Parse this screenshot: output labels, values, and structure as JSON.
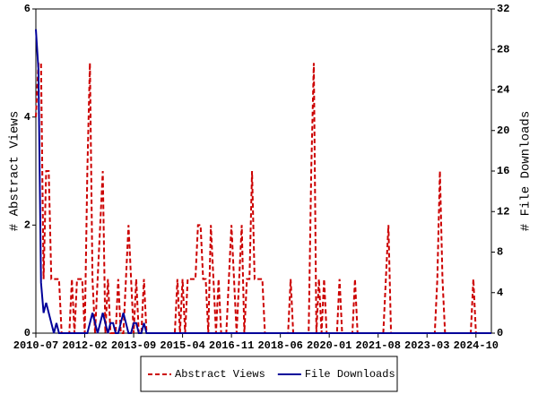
{
  "chart_data": {
    "type": "line",
    "y_label": "# Abstract Views",
    "y2_label": "# File Downloads",
    "x": [
      "2010-07",
      "2010-08",
      "2010-09",
      "2010-10",
      "2010-11",
      "2010-12",
      "2011-01",
      "2011-02",
      "2011-03",
      "2011-04",
      "2011-05",
      "2011-06",
      "2011-07",
      "2011-08",
      "2011-09",
      "2011-10",
      "2011-11",
      "2011-12",
      "2012-01",
      "2012-02",
      "2012-03",
      "2012-04",
      "2012-05",
      "2012-06",
      "2012-07",
      "2012-08",
      "2012-09",
      "2012-10",
      "2012-11",
      "2012-12",
      "2013-01",
      "2013-02",
      "2013-03",
      "2013-04",
      "2013-05",
      "2013-06",
      "2013-07",
      "2013-08",
      "2013-09",
      "2013-10",
      "2013-11",
      "2013-12",
      "2014-01",
      "2014-02",
      "2014-03",
      "2014-04",
      "2014-05",
      "2014-06",
      "2014-07",
      "2014-08",
      "2014-09",
      "2014-10",
      "2014-11",
      "2014-12",
      "2015-01",
      "2015-02",
      "2015-03",
      "2015-04",
      "2015-05",
      "2015-06",
      "2015-07",
      "2015-08",
      "2015-09",
      "2015-10",
      "2015-11",
      "2015-12",
      "2016-01",
      "2016-02",
      "2016-03",
      "2016-04",
      "2016-05",
      "2016-06",
      "2016-07",
      "2016-08",
      "2016-09",
      "2016-10",
      "2016-11",
      "2016-12",
      "2017-01",
      "2017-02",
      "2017-03",
      "2017-04",
      "2017-05",
      "2017-06",
      "2017-07",
      "2017-08",
      "2017-09",
      "2017-10",
      "2017-11",
      "2017-12",
      "2018-01",
      "2018-02",
      "2018-03",
      "2018-04",
      "2018-05",
      "2018-06",
      "2018-07",
      "2018-08",
      "2018-09",
      "2018-10",
      "2018-11",
      "2018-12",
      "2019-01",
      "2019-02",
      "2019-03",
      "2019-04",
      "2019-05",
      "2019-06",
      "2019-07",
      "2019-08",
      "2019-09",
      "2019-10",
      "2019-11",
      "2019-12",
      "2020-01",
      "2020-02",
      "2020-03",
      "2020-04",
      "2020-05",
      "2020-06",
      "2020-07",
      "2020-08",
      "2020-09",
      "2020-10",
      "2020-11",
      "2020-12",
      "2021-01",
      "2021-02",
      "2021-03",
      "2021-04",
      "2021-05",
      "2021-06",
      "2021-07",
      "2021-08",
      "2021-09",
      "2021-10",
      "2021-11",
      "2021-12",
      "2022-01",
      "2022-02",
      "2022-03",
      "2022-04",
      "2022-05",
      "2022-06",
      "2022-07",
      "2022-08",
      "2022-09",
      "2022-10",
      "2022-11",
      "2022-12",
      "2023-01",
      "2023-02",
      "2023-03",
      "2023-04",
      "2023-05",
      "2023-06",
      "2023-07",
      "2023-08",
      "2023-09",
      "2023-10",
      "2023-11",
      "2023-12",
      "2024-01",
      "2024-02",
      "2024-03",
      "2024-04",
      "2024-05",
      "2024-06",
      "2024-07",
      "2024-08",
      "2024-09",
      "2024-10",
      "2024-11",
      "2024-12",
      "2025-01",
      "2025-02",
      "2025-03",
      "2025-04"
    ],
    "xlim": [
      "2010-07",
      "2025-04"
    ],
    "xticks": [
      "2010-07",
      "2012-02",
      "2013-09",
      "2015-04",
      "2016-11",
      "2018-06",
      "2020-01",
      "2021-08",
      "2023-03",
      "2024-10"
    ],
    "ylim": [
      0,
      6
    ],
    "yticks": [
      0,
      2,
      4,
      6
    ],
    "y2lim": [
      0,
      32
    ],
    "y2ticks": [
      0,
      4,
      8,
      12,
      16,
      20,
      24,
      28,
      32
    ],
    "legend": "bottom",
    "series": [
      {
        "name": "Abstract Views",
        "color": "#cc0000",
        "dash": true,
        "values": [
          4,
          5,
          5,
          1,
          3,
          3,
          1,
          1,
          1,
          1,
          0,
          0,
          0,
          0,
          1,
          0,
          1,
          1,
          1,
          0,
          3,
          5,
          1,
          0,
          1,
          2,
          3,
          0,
          1,
          0,
          0,
          0,
          1,
          0,
          0,
          1,
          2,
          1,
          0,
          1,
          0,
          0,
          1,
          0,
          0,
          0,
          0,
          0,
          0,
          0,
          0,
          0,
          0,
          0,
          0,
          1,
          0,
          1,
          0,
          1,
          1,
          1,
          1,
          2,
          2,
          1,
          1,
          0,
          2,
          1,
          0,
          1,
          0,
          0,
          0,
          1,
          2,
          1,
          0,
          1,
          2,
          0,
          1,
          1,
          3,
          1,
          1,
          1,
          1,
          0,
          0,
          0,
          0,
          0,
          0,
          0,
          0,
          0,
          0,
          1,
          0,
          0,
          0,
          0,
          0,
          0,
          0,
          3,
          5,
          0,
          1,
          0,
          1,
          0,
          0,
          0,
          0,
          0,
          1,
          0,
          0,
          0,
          0,
          0,
          1,
          0,
          0,
          0,
          0,
          0,
          0,
          0,
          0,
          0,
          0,
          0,
          1,
          2,
          0,
          0,
          0,
          0,
          0,
          0,
          0,
          0,
          0,
          0,
          0,
          0,
          0,
          0,
          0,
          0,
          0,
          0,
          1,
          3,
          1,
          0,
          0,
          0,
          0,
          0,
          0,
          0,
          0,
          0,
          0,
          0,
          1,
          0,
          0,
          0,
          0,
          0,
          0,
          0
        ]
      },
      {
        "name": "File Downloads",
        "color": "#000099",
        "dash": false,
        "axis": "y2",
        "values": [
          30,
          26,
          5,
          2,
          3,
          2,
          1,
          0,
          1,
          0,
          0,
          0,
          0,
          0,
          0,
          0,
          0,
          0,
          0,
          0,
          0,
          1,
          2,
          1,
          0,
          1,
          2,
          1,
          0,
          1,
          1,
          0,
          0,
          1,
          2,
          1,
          0,
          0,
          1,
          1,
          0,
          0,
          1,
          0,
          0,
          0,
          0,
          0,
          0,
          0,
          0,
          0,
          0,
          0,
          0,
          0,
          0,
          0,
          0,
          0,
          0,
          0,
          0,
          0,
          0,
          0,
          0,
          0,
          0,
          0,
          0,
          0,
          0,
          0,
          0,
          0,
          0,
          0,
          0,
          0,
          0,
          0,
          0,
          0,
          0,
          0,
          0,
          0,
          0,
          0,
          0,
          0,
          0,
          0,
          0,
          0,
          0,
          0,
          0,
          0,
          0,
          0,
          0,
          0,
          0,
          0,
          0,
          0,
          0,
          0,
          0,
          0,
          0,
          0,
          0,
          0,
          0,
          0,
          0,
          0,
          0,
          0,
          0,
          0,
          0,
          0,
          0,
          0,
          0,
          0,
          0,
          0,
          0,
          0,
          0,
          0,
          0,
          0,
          0,
          0,
          0,
          0,
          0,
          0,
          0,
          0,
          0,
          0,
          0,
          0,
          0,
          0,
          0,
          0,
          0,
          0,
          0,
          0,
          0,
          0,
          0,
          0,
          0,
          0,
          0,
          0,
          0,
          0,
          0,
          0,
          0,
          0,
          0,
          0,
          0,
          0,
          0,
          0
        ]
      }
    ]
  }
}
